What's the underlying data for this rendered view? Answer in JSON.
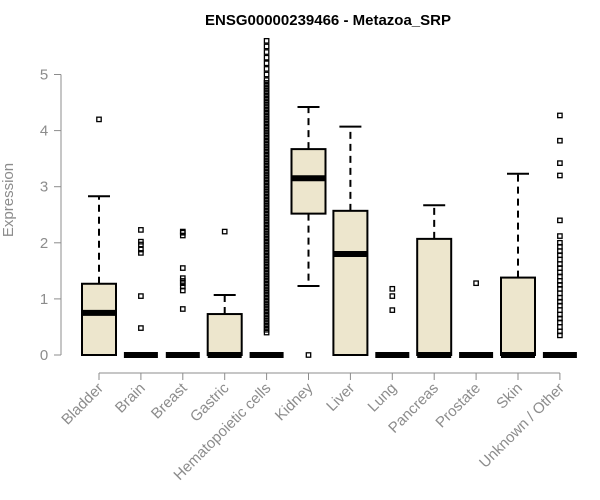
{
  "chart_data": {
    "type": "box",
    "title": "ENSG00000239466 - Metazoa_SRP",
    "xlabel": "",
    "ylabel": "Expression",
    "ylim": [
      0,
      5.6
    ],
    "yticks": [
      "0",
      "1",
      "2",
      "3",
      "4",
      "5"
    ],
    "grid": false,
    "legend": "none",
    "box_color": "#ede6cd",
    "categories": [
      "Bladder",
      "Brain",
      "Breast",
      "Gastric",
      "Hematopoietic cells",
      "Kidney",
      "Liver",
      "Lung",
      "Pancreas",
      "Prostate",
      "Skin",
      "Unknown / Other"
    ],
    "boxes": [
      {
        "q1": 0,
        "median": 0.75,
        "q3": 1.27,
        "whisker_low": 0,
        "whisker_high": 2.83,
        "outliers": [
          4.2
        ]
      },
      {
        "q1": 0,
        "median": 0,
        "q3": 0,
        "whisker_low": 0,
        "whisker_high": 0,
        "outliers": [
          0.48,
          1.05,
          1.82,
          1.88,
          1.97,
          2.02,
          2.23
        ]
      },
      {
        "q1": 0,
        "median": 0,
        "q3": 0,
        "whisker_low": 0,
        "whisker_high": 0,
        "outliers": [
          0.82,
          1.15,
          1.22,
          1.28,
          1.32,
          1.37,
          1.55,
          2.13,
          2.18,
          2.2
        ]
      },
      {
        "q1": 0,
        "median": 0,
        "q3": 0.73,
        "whisker_low": 0,
        "whisker_high": 1.07,
        "outliers": [
          2.2
        ]
      },
      {
        "q1": 0,
        "median": 0,
        "q3": 0,
        "whisker_low": 0,
        "whisker_high": 0,
        "outliers": [
          0.4,
          0.45,
          0.5,
          0.55,
          0.6,
          0.65,
          0.7,
          0.75,
          0.8,
          0.85,
          0.9,
          0.95,
          1.0,
          1.05,
          1.1,
          1.15,
          1.2,
          1.25,
          1.3,
          1.35,
          1.4,
          1.45,
          1.5,
          1.55,
          1.6,
          1.65,
          1.7,
          1.75,
          1.8,
          1.85,
          1.9,
          1.95,
          2.0,
          2.05,
          2.1,
          2.15,
          2.2,
          2.25,
          2.3,
          2.35,
          2.4,
          2.45,
          2.5,
          2.55,
          2.6,
          2.65,
          2.7,
          2.75,
          2.8,
          2.85,
          2.9,
          2.95,
          3.0,
          3.05,
          3.1,
          3.15,
          3.2,
          3.25,
          3.3,
          3.35,
          3.4,
          3.45,
          3.5,
          3.55,
          3.6,
          3.65,
          3.7,
          3.75,
          3.8,
          3.85,
          3.9,
          3.95,
          4.0,
          4.05,
          4.1,
          4.15,
          4.2,
          4.25,
          4.3,
          4.35,
          4.4,
          4.45,
          4.5,
          4.55,
          4.6,
          4.65,
          4.7,
          4.75,
          4.8,
          4.85,
          4.9,
          5.0,
          5.1,
          5.2,
          5.3,
          5.4,
          5.5,
          5.6
        ]
      },
      {
        "q1": 2.52,
        "median": 3.15,
        "q3": 3.67,
        "whisker_low": 1.23,
        "whisker_high": 4.42,
        "outliers": [
          0
        ]
      },
      {
        "q1": 0,
        "median": 1.8,
        "q3": 2.57,
        "whisker_low": 0,
        "whisker_high": 4.07,
        "outliers": []
      },
      {
        "q1": 0,
        "median": 0,
        "q3": 0,
        "whisker_low": 0,
        "whisker_high": 0,
        "outliers": [
          0.8,
          1.05,
          1.18
        ]
      },
      {
        "q1": 0,
        "median": 0,
        "q3": 2.07,
        "whisker_low": 0,
        "whisker_high": 2.67,
        "outliers": []
      },
      {
        "q1": 0,
        "median": 0,
        "q3": 0,
        "whisker_low": 0,
        "whisker_high": 0,
        "outliers": [
          1.28
        ]
      },
      {
        "q1": 0,
        "median": 0,
        "q3": 1.38,
        "whisker_low": 0,
        "whisker_high": 3.23,
        "outliers": []
      },
      {
        "q1": 0,
        "median": 0,
        "q3": 0,
        "whisker_low": 0,
        "whisker_high": 0,
        "outliers": [
          0.35,
          0.42,
          0.5,
          0.58,
          0.65,
          0.72,
          0.8,
          0.88,
          0.95,
          1.02,
          1.1,
          1.18,
          1.25,
          1.32,
          1.4,
          1.47,
          1.55,
          1.62,
          1.7,
          1.78,
          1.85,
          1.93,
          2.0,
          2.12,
          2.4,
          3.2,
          3.42,
          3.82,
          4.27
        ]
      }
    ]
  }
}
